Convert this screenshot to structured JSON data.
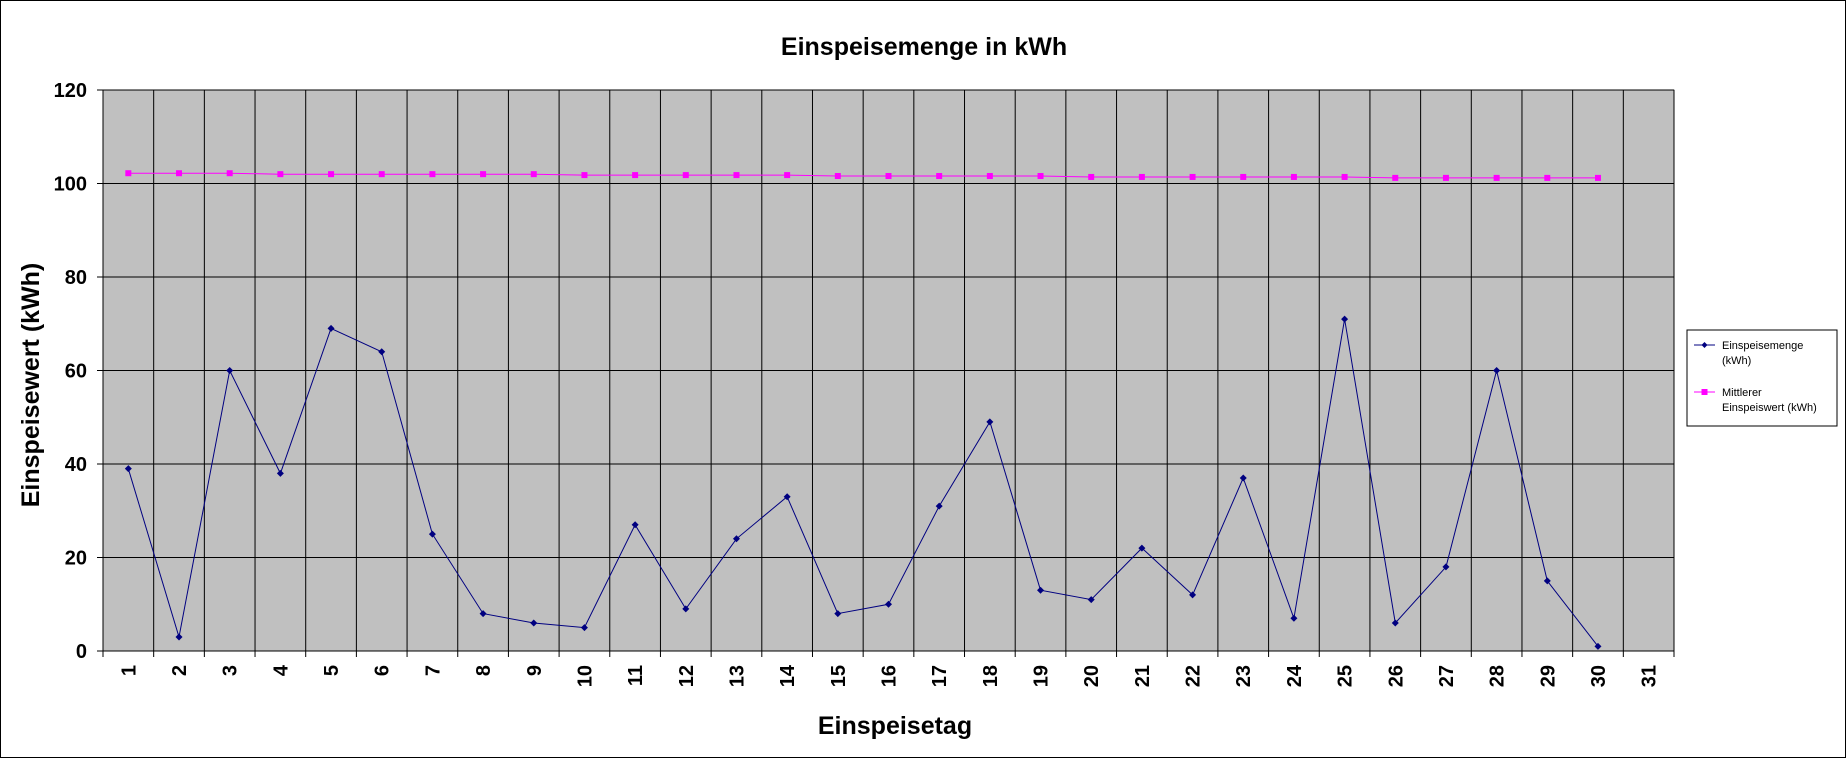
{
  "chart_data": {
    "type": "line",
    "title": "Einspeisemenge in kWh",
    "xlabel": "Einspeisetag",
    "ylabel": "Einspeisewert  (kWh)",
    "categories": [
      "1",
      "2",
      "3",
      "4",
      "5",
      "6",
      "7",
      "8",
      "9",
      "10",
      "11",
      "12",
      "13",
      "14",
      "15",
      "16",
      "17",
      "18",
      "19",
      "20",
      "21",
      "22",
      "23",
      "24",
      "25",
      "26",
      "27",
      "28",
      "29",
      "30",
      "31"
    ],
    "ylim": [
      0,
      120
    ],
    "yticks": [
      "0",
      "20",
      "40",
      "60",
      "80",
      "100",
      "120"
    ],
    "grid": true,
    "legend_position": "right",
    "series": [
      {
        "name": "Einspeisemenge (kWh)",
        "color": "#000080",
        "marker": "diamond",
        "values": [
          39,
          3,
          60,
          38,
          69,
          64,
          25,
          8,
          6,
          5,
          27,
          9,
          24,
          33,
          8,
          10,
          31,
          49,
          13,
          11,
          22,
          12,
          37,
          7,
          71,
          6,
          18,
          60,
          15,
          1,
          null
        ]
      },
      {
        "name": "Mittlerer Einspeiswert (kWh)",
        "color": "#ff00ff",
        "marker": "square",
        "values": [
          102.2,
          102.2,
          102.2,
          102.0,
          102.0,
          102.0,
          102.0,
          102.0,
          102.0,
          101.8,
          101.8,
          101.8,
          101.8,
          101.8,
          101.6,
          101.6,
          101.6,
          101.6,
          101.6,
          101.4,
          101.4,
          101.4,
          101.4,
          101.4,
          101.4,
          101.2,
          101.2,
          101.2,
          101.2,
          101.2,
          null
        ]
      }
    ],
    "legend": {
      "entries": [
        {
          "lines": [
            "Einspeisemenge",
            "(kWh)"
          ]
        },
        {
          "lines": [
            "Mittlerer",
            "Einspeiswert (kWh)"
          ]
        }
      ]
    },
    "colors": {
      "plot_background": "#c0c0c0",
      "gridline": "#000000"
    }
  }
}
